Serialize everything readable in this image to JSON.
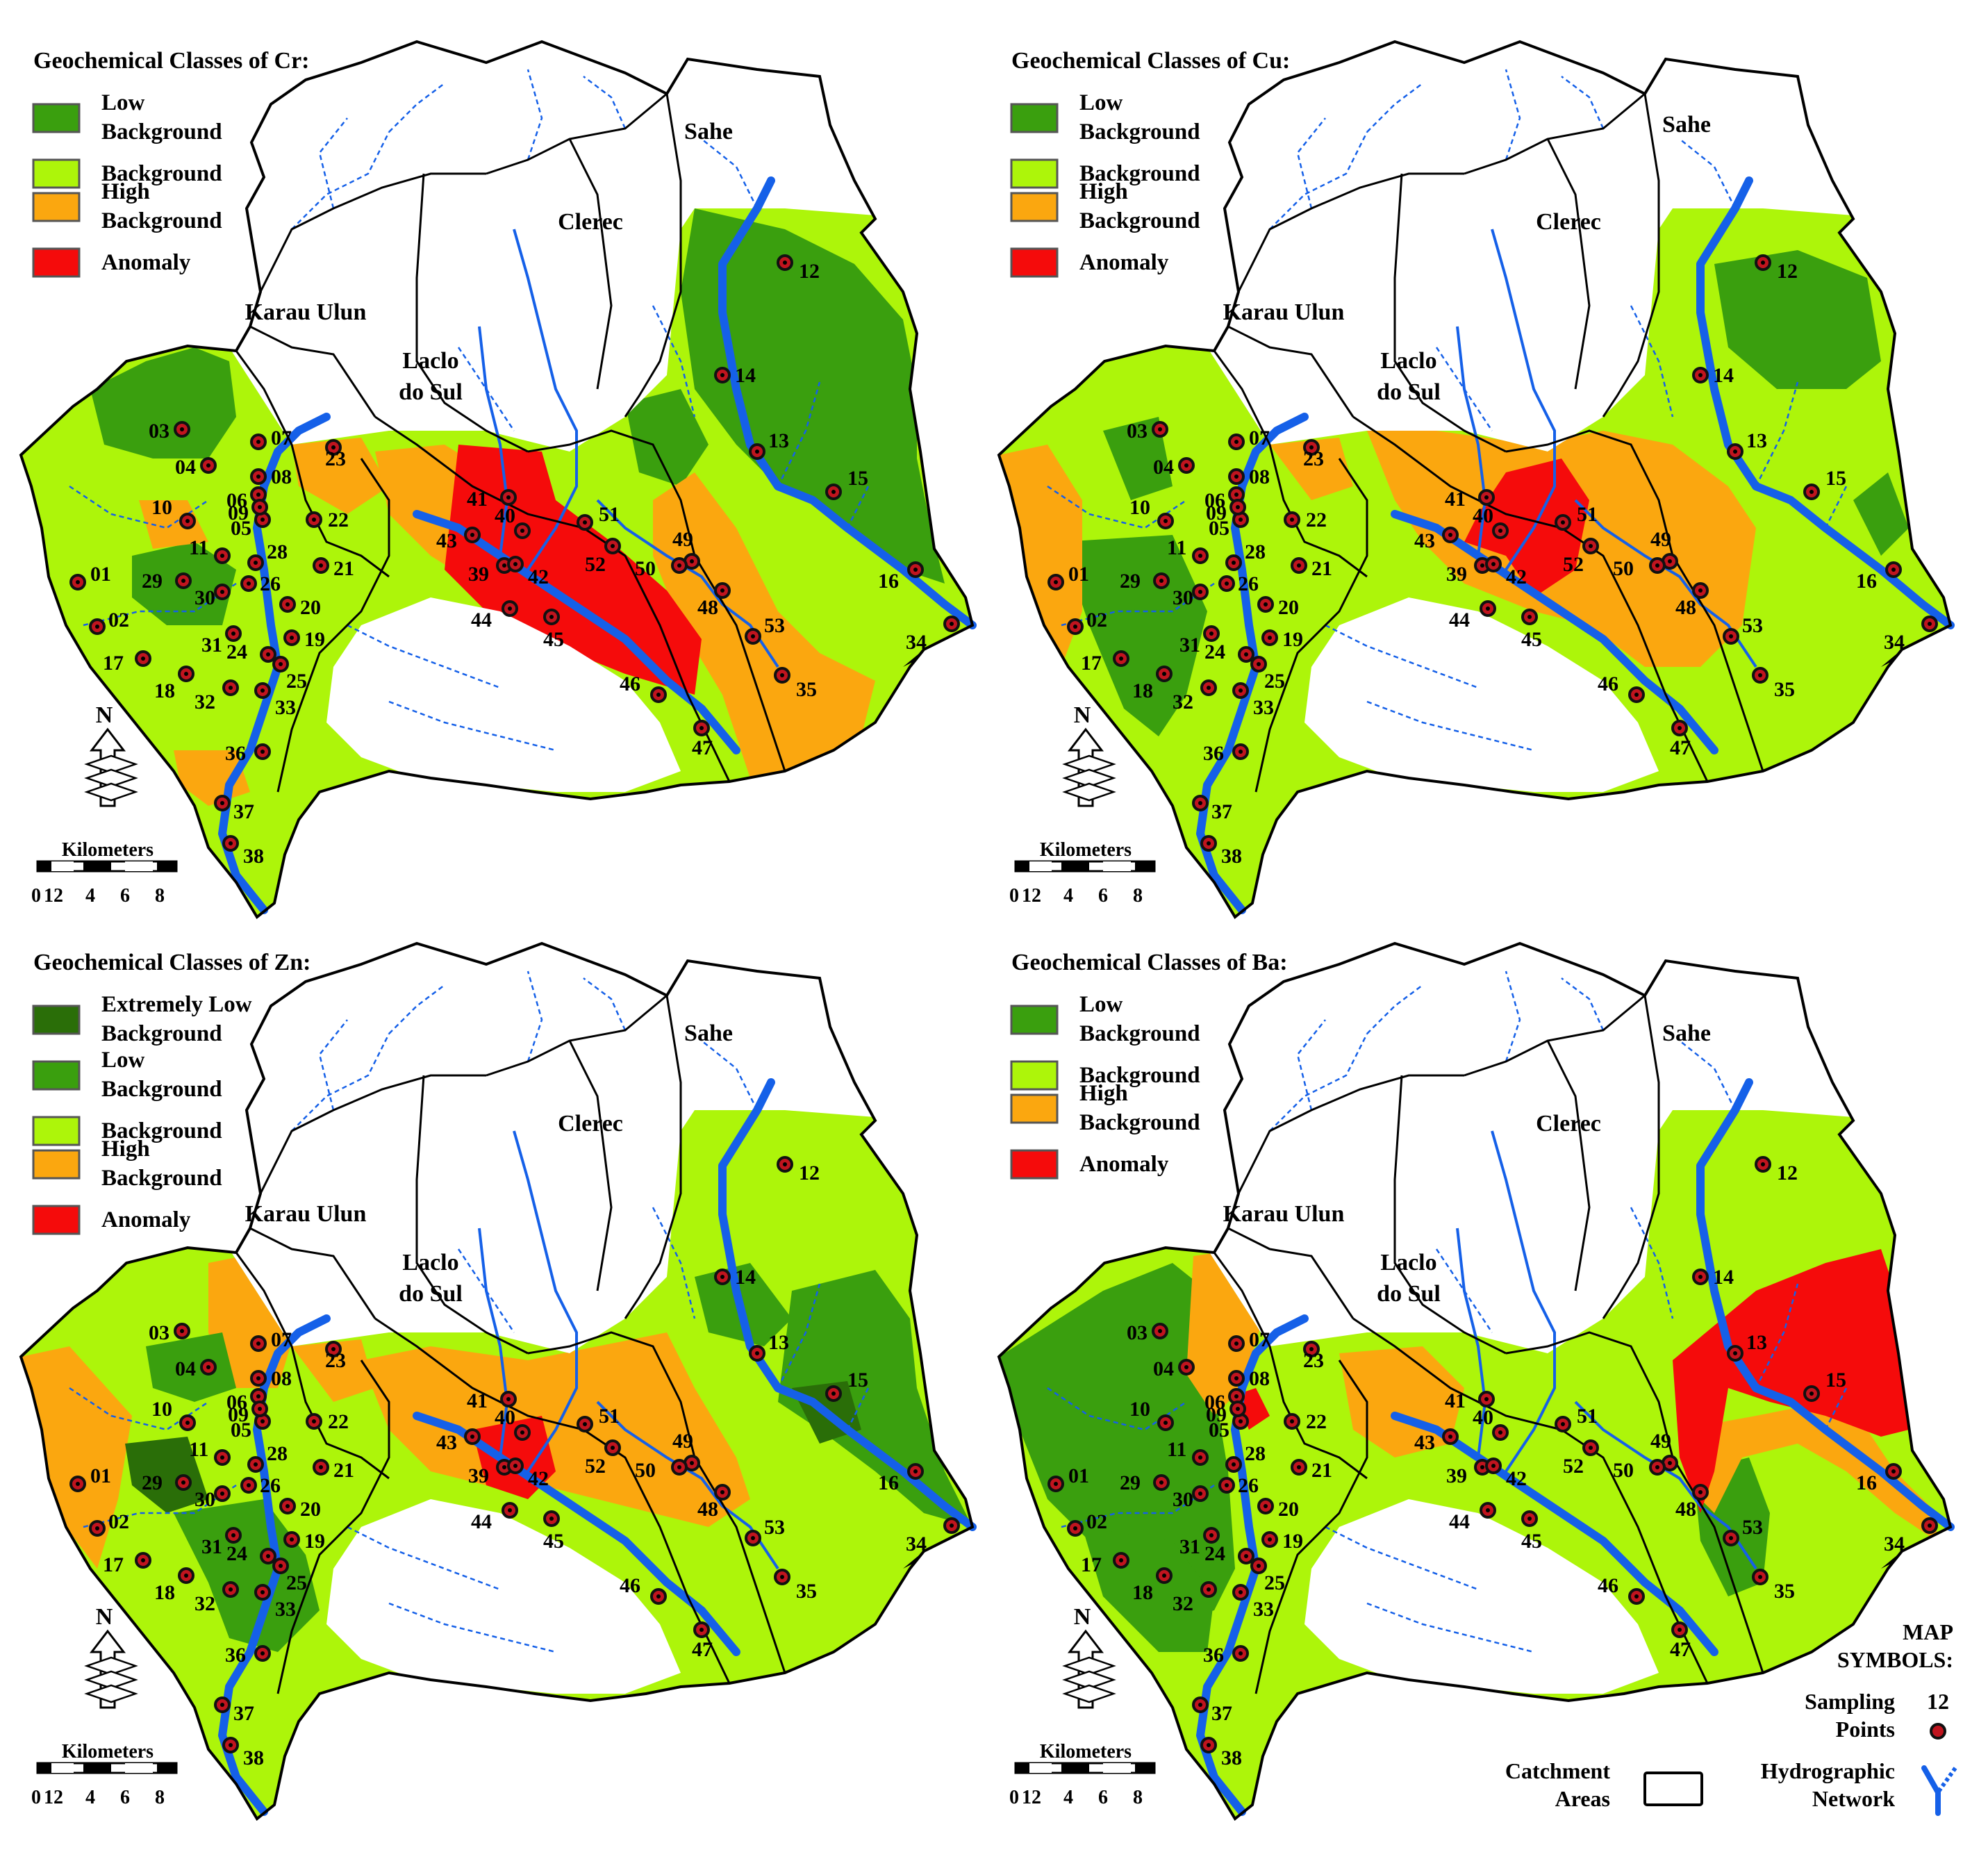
{
  "panels": [
    {
      "title": "Geochemical Classes of Cr:",
      "legend": [
        {
          "label": [
            "Low",
            "Background"
          ],
          "color": "#3a9f0e"
        },
        {
          "label": [
            "Background"
          ],
          "color": "#adf50a"
        },
        {
          "label": [
            "High",
            "Background"
          ],
          "color": "#fba70f"
        },
        {
          "label": [
            "Anomaly"
          ],
          "color": "#f50b0b"
        }
      ]
    },
    {
      "title": "Geochemical Classes of Cu:",
      "legend": [
        {
          "label": [
            "Low",
            "Background"
          ],
          "color": "#3a9f0e"
        },
        {
          "label": [
            "Background"
          ],
          "color": "#adf50a"
        },
        {
          "label": [
            "High",
            "Background"
          ],
          "color": "#fba70f"
        },
        {
          "label": [
            "Anomaly"
          ],
          "color": "#f50b0b"
        }
      ]
    },
    {
      "title": "Geochemical Classes of Zn:",
      "legend": [
        {
          "label": [
            "Extremely Low",
            "Background"
          ],
          "color": "#2a6e08"
        },
        {
          "label": [
            "Low",
            "Background"
          ],
          "color": "#3a9f0e"
        },
        {
          "label": [
            "Background"
          ],
          "color": "#adf50a"
        },
        {
          "label": [
            "High",
            "Background"
          ],
          "color": "#fba70f"
        },
        {
          "label": [
            "Anomaly"
          ],
          "color": "#f50b0b"
        }
      ]
    },
    {
      "title": "Geochemical Classes of Ba:",
      "legend": [
        {
          "label": [
            "Low",
            "Background"
          ],
          "color": "#3a9f0e"
        },
        {
          "label": [
            "Background"
          ],
          "color": "#adf50a"
        },
        {
          "label": [
            "High",
            "Background"
          ],
          "color": "#fba70f"
        },
        {
          "label": [
            "Anomaly"
          ],
          "color": "#f50b0b"
        }
      ]
    }
  ],
  "catchments": [
    "Sahe",
    "Clerec",
    "Karau Ulun",
    "Laclo",
    "do Sul"
  ],
  "sampling_points": [
    "01",
    "02",
    "03",
    "04",
    "05",
    "06",
    "07",
    "08",
    "09",
    "10",
    "11",
    "12",
    "13",
    "14",
    "15",
    "16",
    "17",
    "18",
    "19",
    "20",
    "21",
    "22",
    "23",
    "24",
    "25",
    "26",
    "28",
    "29",
    "30",
    "31",
    "32",
    "33",
    "34",
    "35",
    "36",
    "37",
    "38",
    "39",
    "40",
    "41",
    "42",
    "43",
    "44",
    "45",
    "46",
    "47",
    "48",
    "49",
    "50",
    "51",
    "52",
    "53"
  ],
  "scale": {
    "title": "Kilometers",
    "ticks": [
      "0",
      "1",
      "2",
      "4",
      "6",
      "8"
    ]
  },
  "north": "N",
  "map_symbols": {
    "title": [
      "MAP",
      "SYMBOLS:"
    ],
    "sampling": [
      "Sampling",
      "Points"
    ],
    "sampling_example": "12",
    "catchment": [
      "Catchment",
      "Areas"
    ],
    "hydro": [
      "Hydrographic",
      "Network"
    ]
  },
  "colors": {
    "river": "#1560e8",
    "outline": "#000000",
    "point_ring": "#111111",
    "point_fill": "#c0141e"
  }
}
